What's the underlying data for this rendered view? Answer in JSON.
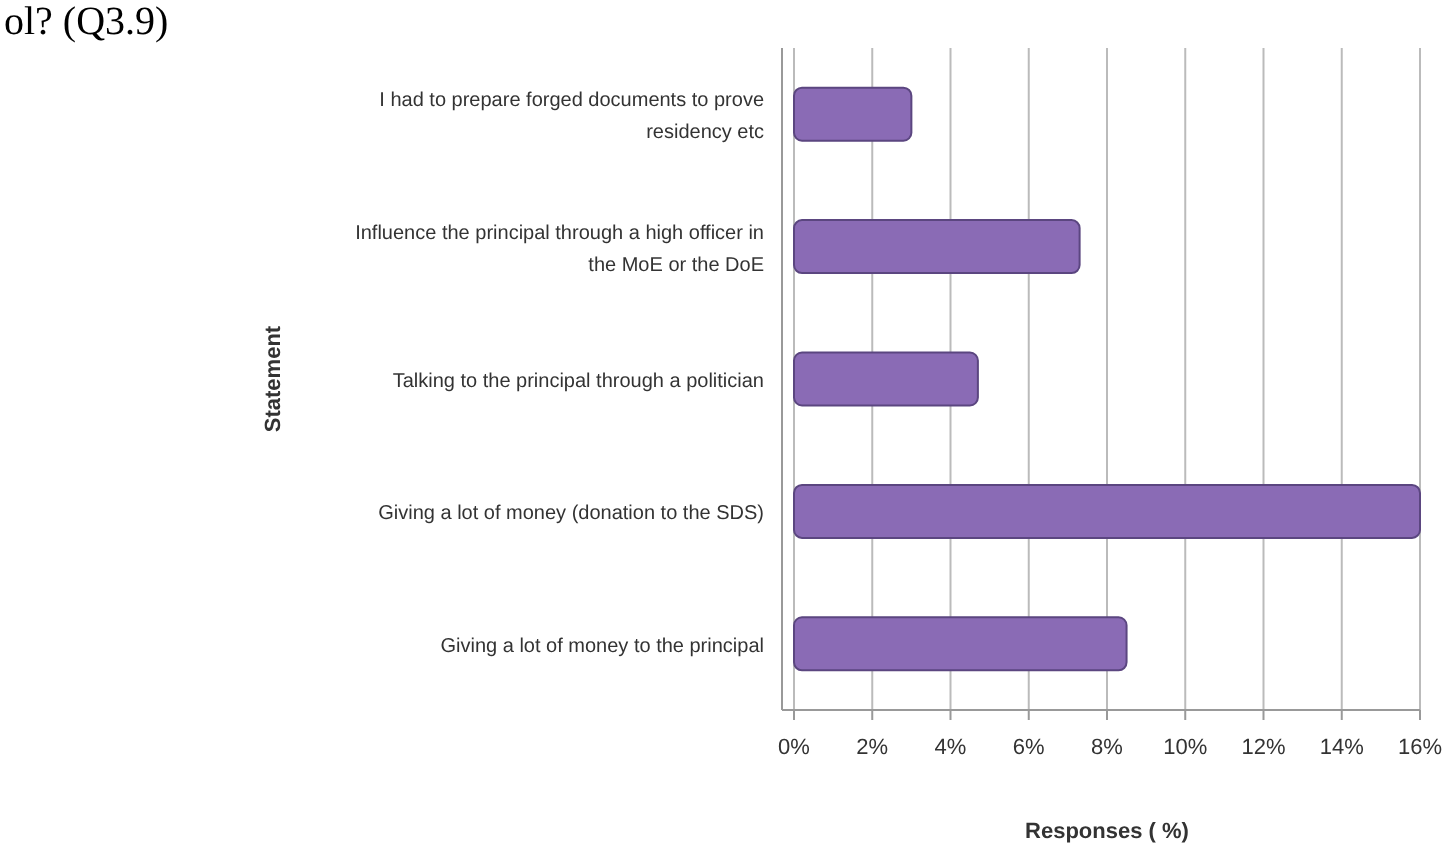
{
  "chart_data": {
    "type": "bar",
    "orientation": "horizontal",
    "title": "ol? (Q3.9)",
    "xlabel": "Responses ( %)",
    "ylabel": "Statement",
    "categories": [
      "I had to prepare forged documents to prove residency etc",
      "Influence the principal through a high officer in the MoE or the DoE",
      "Talking to the principal through a politician",
      "Giving a lot of money (donation to the SDS)",
      "Giving a lot of money to the principal"
    ],
    "values": [
      3.0,
      7.3,
      4.7,
      16.0,
      8.5
    ],
    "color": "#8a6bb5",
    "xlim": [
      0,
      16
    ],
    "xticks": [
      {
        "value": 0,
        "label": "0%"
      },
      {
        "value": 2,
        "label": "2%"
      },
      {
        "value": 4,
        "label": "4%"
      },
      {
        "value": 6,
        "label": "6%"
      },
      {
        "value": 8,
        "label": "8%"
      },
      {
        "value": 10,
        "label": "10%"
      },
      {
        "value": 12,
        "label": "12%"
      },
      {
        "value": 14,
        "label": "14%"
      },
      {
        "value": 16,
        "label": "16%"
      }
    ],
    "grid": "x"
  }
}
